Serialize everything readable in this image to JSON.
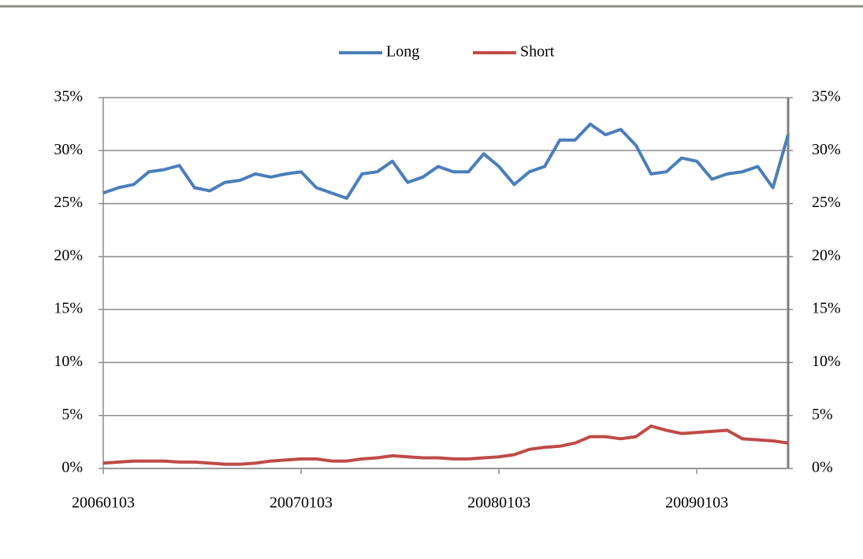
{
  "chart_data": {
    "type": "line",
    "categories": [
      "20060103",
      null,
      null,
      null,
      null,
      null,
      null,
      null,
      null,
      null,
      null,
      null,
      null,
      "20070103",
      null,
      null,
      null,
      null,
      null,
      null,
      null,
      null,
      null,
      null,
      null,
      null,
      "20080103",
      null,
      null,
      null,
      null,
      null,
      null,
      null,
      null,
      null,
      null,
      null,
      null,
      "20090103",
      null,
      null,
      null,
      null,
      null,
      null
    ],
    "series": [
      {
        "name": "Long",
        "color": "#4a7ebb",
        "values": [
          26.0,
          26.5,
          26.8,
          28.0,
          28.2,
          28.6,
          26.5,
          26.2,
          27.0,
          27.2,
          27.8,
          27.5,
          27.8,
          28.0,
          26.5,
          26.0,
          25.5,
          27.8,
          28.0,
          29.0,
          27.0,
          27.5,
          28.5,
          28.0,
          28.0,
          29.7,
          28.5,
          26.8,
          28.0,
          28.5,
          31.0,
          31.0,
          32.5,
          31.5,
          32.0,
          30.5,
          27.8,
          28.0,
          29.3,
          29.0,
          27.3,
          27.8,
          28.0,
          28.5,
          26.5,
          31.5
        ]
      },
      {
        "name": "Short",
        "color": "#be4b48",
        "values": [
          0.5,
          0.6,
          0.7,
          0.7,
          0.7,
          0.6,
          0.6,
          0.5,
          0.4,
          0.4,
          0.5,
          0.7,
          0.8,
          0.9,
          0.9,
          0.7,
          0.7,
          0.9,
          1.0,
          1.2,
          1.1,
          1.0,
          1.0,
          0.9,
          0.9,
          1.0,
          1.1,
          1.3,
          1.8,
          2.0,
          2.1,
          2.4,
          3.0,
          3.0,
          2.8,
          3.0,
          4.0,
          3.6,
          3.3,
          3.4,
          3.5,
          3.6,
          2.8,
          2.7,
          2.6,
          2.4
        ]
      }
    ],
    "ylim": [
      0,
      35
    ],
    "yticks": [
      {
        "value": 0,
        "label": "0%"
      },
      {
        "value": 5,
        "label": "5%"
      },
      {
        "value": 10,
        "label": "10%"
      },
      {
        "value": 15,
        "label": "15%"
      },
      {
        "value": 20,
        "label": "20%"
      },
      {
        "value": 25,
        "label": "25%"
      },
      {
        "value": 30,
        "label": "30%"
      },
      {
        "value": 35,
        "label": "35%"
      }
    ],
    "y2lim": [
      0,
      35
    ],
    "y2ticks": [
      {
        "value": 0,
        "label": "0%"
      },
      {
        "value": 5,
        "label": "5%"
      },
      {
        "value": 10,
        "label": "10%"
      },
      {
        "value": 15,
        "label": "15%"
      },
      {
        "value": 20,
        "label": "20%"
      },
      {
        "value": 25,
        "label": "25%"
      },
      {
        "value": 30,
        "label": "30%"
      },
      {
        "value": 35,
        "label": "35%"
      }
    ],
    "grid": true,
    "legend": "top"
  }
}
